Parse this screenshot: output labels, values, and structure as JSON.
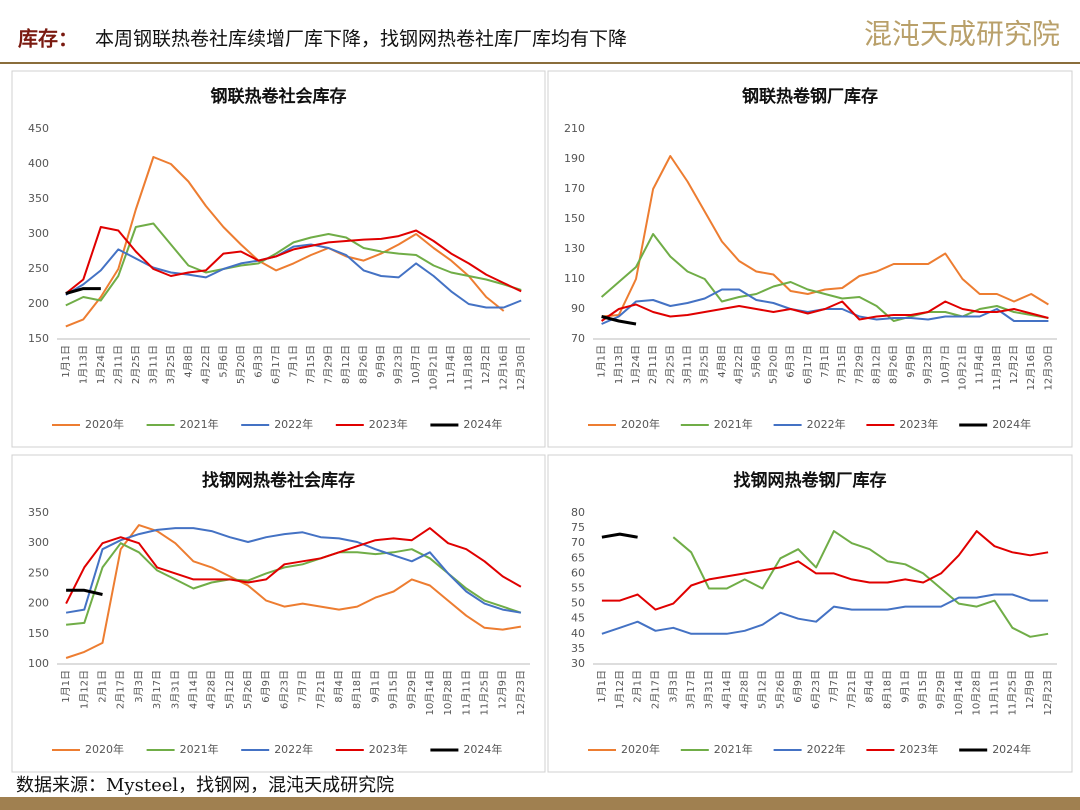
{
  "header": {
    "label": "库存：",
    "title": "本周钢联热卷社库续增厂库下降，找钢网热卷社库厂库均有下降",
    "logo": "混沌天成研究院"
  },
  "source": "数据来源：Mysteel，找钢网，混沌天成研究院",
  "chart_data": [
    {
      "type": "line",
      "title": "钢联热卷社会库存",
      "categories": [
        "1月1日",
        "1月13日",
        "1月24日",
        "2月11日",
        "2月25日",
        "3月11日",
        "3月25日",
        "4月8日",
        "4月22日",
        "5月6日",
        "5月20日",
        "6月3日",
        "6月17日",
        "7月1日",
        "7月15日",
        "7月29日",
        "8月12日",
        "8月26日",
        "9月9日",
        "9月23日",
        "10月7日",
        "10月21日",
        "11月4日",
        "11月18日",
        "12月2日",
        "12月16日",
        "12月30日"
      ],
      "ylim": [
        150,
        450
      ],
      "yticks": [
        150,
        200,
        250,
        300,
        350,
        400,
        450
      ],
      "series": [
        {
          "name": "2020年",
          "color": "#ED7D31",
          "values": [
            168,
            178,
            210,
            250,
            335,
            410,
            400,
            375,
            340,
            310,
            285,
            262,
            248,
            258,
            270,
            280,
            268,
            262,
            272,
            285,
            300,
            280,
            262,
            240,
            210,
            190,
            null
          ]
        },
        {
          "name": "2021年",
          "color": "#70AD47",
          "values": [
            198,
            210,
            205,
            240,
            310,
            315,
            285,
            255,
            245,
            250,
            255,
            258,
            272,
            288,
            295,
            300,
            295,
            280,
            275,
            272,
            270,
            255,
            245,
            240,
            235,
            228,
            220
          ]
        },
        {
          "name": "2022年",
          "color": "#4472C4",
          "values": [
            213,
            228,
            248,
            278,
            265,
            252,
            245,
            242,
            238,
            250,
            258,
            262,
            268,
            282,
            285,
            280,
            270,
            248,
            240,
            238,
            258,
            240,
            218,
            200,
            195,
            195,
            205
          ]
        },
        {
          "name": "2023年",
          "color": "#E00000",
          "values": [
            215,
            235,
            310,
            305,
            275,
            250,
            240,
            245,
            248,
            272,
            275,
            262,
            268,
            278,
            283,
            288,
            290,
            292,
            293,
            297,
            305,
            290,
            272,
            258,
            242,
            230,
            218
          ]
        },
        {
          "name": "2024年",
          "color": "#000000",
          "values": [
            215,
            222,
            222,
            null,
            null,
            null,
            null,
            null,
            null,
            null,
            null,
            null,
            null,
            null,
            null,
            null,
            null,
            null,
            null,
            null,
            null,
            null,
            null,
            null,
            null,
            null,
            null
          ]
        }
      ]
    },
    {
      "type": "line",
      "title": "钢联热卷钢厂库存",
      "categories": [
        "1月1日",
        "1月13日",
        "1月24日",
        "2月11日",
        "2月25日",
        "3月11日",
        "3月25日",
        "4月8日",
        "4月22日",
        "5月6日",
        "5月20日",
        "6月3日",
        "6月17日",
        "7月1日",
        "7月15日",
        "7月29日",
        "8月12日",
        "8月26日",
        "9月9日",
        "9月23日",
        "10月7日",
        "10月21日",
        "11月4日",
        "11月18日",
        "12月2日",
        "12月16日",
        "12月30日"
      ],
      "ylim": [
        70,
        210
      ],
      "yticks": [
        70,
        90,
        110,
        130,
        150,
        170,
        190,
        210
      ],
      "series": [
        {
          "name": "2020年",
          "color": "#ED7D31",
          "values": [
            85,
            86,
            110,
            170,
            192,
            175,
            155,
            135,
            122,
            115,
            113,
            102,
            100,
            103,
            104,
            112,
            115,
            120,
            120,
            120,
            127,
            110,
            100,
            100,
            95,
            100,
            93
          ]
        },
        {
          "name": "2021年",
          "color": "#70AD47",
          "values": [
            98,
            108,
            118,
            140,
            125,
            115,
            110,
            95,
            98,
            100,
            105,
            108,
            103,
            100,
            97,
            98,
            92,
            82,
            85,
            88,
            88,
            85,
            90,
            92,
            88,
            86,
            84
          ]
        },
        {
          "name": "2022年",
          "color": "#4472C4",
          "values": [
            80,
            85,
            95,
            96,
            92,
            94,
            97,
            103,
            103,
            96,
            94,
            90,
            88,
            90,
            90,
            85,
            83,
            84,
            84,
            83,
            85,
            85,
            85,
            90,
            82,
            82,
            82
          ]
        },
        {
          "name": "2023年",
          "color": "#E00000",
          "values": [
            82,
            90,
            93,
            88,
            85,
            86,
            88,
            90,
            92,
            90,
            88,
            90,
            87,
            90,
            95,
            83,
            85,
            86,
            86,
            88,
            95,
            90,
            88,
            88,
            90,
            87,
            84
          ]
        },
        {
          "name": "2024年",
          "color": "#000000",
          "values": [
            85,
            82,
            80,
            null,
            null,
            null,
            null,
            null,
            null,
            null,
            null,
            null,
            null,
            null,
            null,
            null,
            null,
            null,
            null,
            null,
            null,
            null,
            null,
            null,
            null,
            null,
            null
          ]
        }
      ]
    },
    {
      "type": "line",
      "title": "找钢网热卷社会库存",
      "categories": [
        "1月1日",
        "1月12日",
        "2月1日",
        "2月17日",
        "3月3日",
        "3月17日",
        "3月31日",
        "4月14日",
        "4月28日",
        "5月12日",
        "5月26日",
        "6月9日",
        "6月23日",
        "7月7日",
        "7月21日",
        "8月4日",
        "8月18日",
        "9月1日",
        "9月15日",
        "9月29日",
        "10月14日",
        "10月28日",
        "11月11日",
        "11月25日",
        "12月9日",
        "12月23日"
      ],
      "ylim": [
        100,
        350
      ],
      "yticks": [
        100,
        150,
        200,
        250,
        300,
        350
      ],
      "series": [
        {
          "name": "2020年",
          "color": "#ED7D31",
          "values": [
            110,
            120,
            135,
            290,
            330,
            320,
            300,
            270,
            260,
            245,
            230,
            205,
            195,
            200,
            195,
            190,
            195,
            210,
            220,
            240,
            230,
            205,
            180,
            160,
            157,
            162
          ]
        },
        {
          "name": "2021年",
          "color": "#70AD47",
          "values": [
            165,
            168,
            260,
            300,
            285,
            255,
            240,
            225,
            235,
            240,
            238,
            250,
            260,
            265,
            275,
            285,
            285,
            282,
            285,
            290,
            275,
            250,
            225,
            205,
            195,
            185
          ]
        },
        {
          "name": "2022年",
          "color": "#4472C4",
          "values": [
            185,
            190,
            290,
            305,
            315,
            322,
            325,
            325,
            320,
            310,
            302,
            310,
            315,
            318,
            310,
            308,
            302,
            290,
            280,
            270,
            285,
            250,
            220,
            200,
            190,
            185
          ]
        },
        {
          "name": "2023年",
          "color": "#E00000",
          "values": [
            200,
            260,
            300,
            310,
            300,
            260,
            250,
            240,
            240,
            240,
            235,
            240,
            265,
            270,
            275,
            285,
            295,
            305,
            308,
            305,
            325,
            300,
            290,
            270,
            245,
            228
          ]
        },
        {
          "name": "2024年",
          "color": "#000000",
          "values": [
            222,
            222,
            215,
            null,
            null,
            null,
            null,
            null,
            null,
            null,
            null,
            null,
            null,
            null,
            null,
            null,
            null,
            null,
            null,
            null,
            null,
            null,
            null,
            null,
            null,
            null
          ]
        }
      ]
    },
    {
      "type": "line",
      "title": "找钢网热卷钢厂库存",
      "categories": [
        "1月1日",
        "1月12日",
        "2月1日",
        "2月17日",
        "3月3日",
        "3月17日",
        "3月31日",
        "4月14日",
        "4月28日",
        "5月12日",
        "5月26日",
        "6月9日",
        "6月23日",
        "7月7日",
        "7月21日",
        "8月4日",
        "8月18日",
        "9月1日",
        "9月15日",
        "9月29日",
        "10月14日",
        "10月28日",
        "11月11日",
        "11月25日",
        "12月9日",
        "12月23日"
      ],
      "ylim": [
        30,
        80
      ],
      "yticks": [
        30,
        35,
        40,
        45,
        50,
        55,
        60,
        65,
        70,
        75,
        80
      ],
      "series": [
        {
          "name": "2020年",
          "color": "#ED7D31",
          "values": [
            null,
            null,
            null,
            null,
            null,
            null,
            null,
            null,
            null,
            null,
            null,
            null,
            null,
            null,
            null,
            null,
            null,
            null,
            null,
            null,
            null,
            null,
            null,
            null,
            null,
            null
          ]
        },
        {
          "name": "2021年",
          "color": "#70AD47",
          "values": [
            null,
            null,
            null,
            null,
            72,
            67,
            55,
            55,
            58,
            55,
            65,
            68,
            62,
            74,
            70,
            68,
            64,
            63,
            60,
            55,
            50,
            49,
            51,
            42,
            39,
            40
          ]
        },
        {
          "name": "2022年",
          "color": "#4472C4",
          "values": [
            40,
            42,
            44,
            41,
            42,
            40,
            40,
            40,
            41,
            43,
            47,
            45,
            44,
            49,
            48,
            48,
            48,
            49,
            49,
            49,
            52,
            52,
            53,
            53,
            51,
            51
          ]
        },
        {
          "name": "2023年",
          "color": "#E00000",
          "values": [
            51,
            51,
            53,
            48,
            50,
            56,
            58,
            59,
            60,
            61,
            62,
            64,
            60,
            60,
            58,
            57,
            57,
            58,
            57,
            60,
            66,
            74,
            69,
            67,
            66,
            67
          ]
        },
        {
          "name": "2024年",
          "color": "#000000",
          "values": [
            72,
            73,
            72,
            null,
            null,
            null,
            null,
            null,
            null,
            null,
            null,
            null,
            null,
            null,
            null,
            null,
            null,
            null,
            null,
            null,
            null,
            null,
            null,
            null,
            null,
            null
          ]
        }
      ]
    }
  ]
}
